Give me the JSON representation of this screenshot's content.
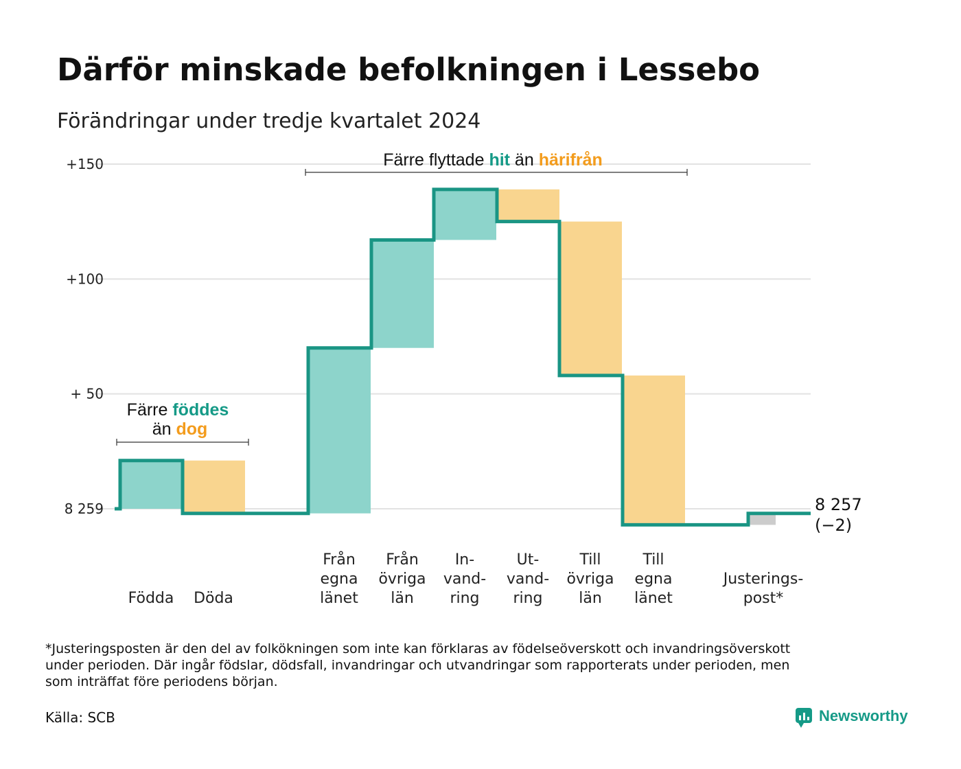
{
  "title": "Därför minskade befolkningen i Lessebo",
  "subtitle": "Förändringar under tredje kvartalet 2024",
  "colors": {
    "increase": "#8dd4cb",
    "decrease": "#f9d58f",
    "adjustment": "#cccccc",
    "line": "#1a9584",
    "accent_teal": "#159a87",
    "accent_orange": "#f39c1d",
    "grid": "#e2e2e2"
  },
  "annotations": {
    "births": {
      "line1_prefix": "Färre ",
      "line1_highlight": "föddes",
      "line2_prefix": "än ",
      "line2_highlight": "dog"
    },
    "migration": {
      "prefix": "Färre flyttade ",
      "highlight1": "hit",
      "middle": " än ",
      "highlight2": "härifrån"
    }
  },
  "end_label": {
    "value": "8 257",
    "change": "(−2)"
  },
  "footnote": [
    "*Justeringsposten är den del av folkökningen som inte kan förklaras av födelseöverskott och invandringsöverskott",
    "under perioden. Där ingår födslar, dödsfall, invandringar och utvandringar som rapporterats under perioden, men",
    "som inträffat före periodens början."
  ],
  "source": "Källa: SCB",
  "brand": "Newsworthy",
  "chart_data": {
    "type": "waterfall",
    "title": "Därför minskade befolkningen i Lessebo",
    "subtitle": "Förändringar under tredje kvartalet 2024",
    "base_value": 8259,
    "base_label": "8 259",
    "end_value": 8257,
    "y_ticks": [
      {
        "value": 150,
        "label": "+150"
      },
      {
        "value": 100,
        "label": "+100"
      },
      {
        "value": 50,
        "label": "+ 50"
      },
      {
        "value": 0,
        "label": "8 259"
      }
    ],
    "ylim": [
      -10,
      150
    ],
    "grid": true,
    "steps": [
      {
        "label_lines": [
          "Födda"
        ],
        "value": 21,
        "kind": "increase"
      },
      {
        "label_lines": [
          "Döda"
        ],
        "value": -23,
        "kind": "decrease"
      },
      {
        "label_lines": [
          "Från",
          "egna",
          "länet"
        ],
        "value": 72,
        "kind": "increase"
      },
      {
        "label_lines": [
          "Från",
          "övriga",
          "län"
        ],
        "value": 47,
        "kind": "increase"
      },
      {
        "label_lines": [
          "In-",
          "vand-",
          "ring"
        ],
        "value": 22,
        "kind": "increase"
      },
      {
        "label_lines": [
          "Ut-",
          "vand-",
          "ring"
        ],
        "value": -14,
        "kind": "decrease"
      },
      {
        "label_lines": [
          "Till",
          "övriga",
          "län"
        ],
        "value": -67,
        "kind": "decrease"
      },
      {
        "label_lines": [
          "Till",
          "egna",
          "länet"
        ],
        "value": -65,
        "kind": "decrease"
      },
      {
        "label_lines": [
          "Justerings-",
          "post*"
        ],
        "value": 5,
        "kind": "adjustment"
      }
    ]
  }
}
